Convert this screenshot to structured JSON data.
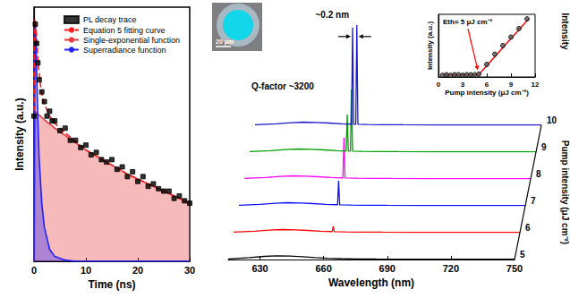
{
  "chart_data": [
    {
      "type": "line",
      "xlabel": "Time (ns)",
      "ylabel": "Intensity (a.u.)",
      "xlim": [
        0,
        30
      ],
      "xticks": [
        0,
        10,
        20,
        30
      ],
      "ylim": [
        0,
        1.05
      ],
      "tick_labels": "x",
      "grid": false,
      "legend": "upper right",
      "series": [
        {
          "name": "PL decay trace",
          "type": "scatter",
          "marker": "square",
          "color": "#000000",
          "x": [
            0,
            0.25,
            0.5,
            0.75,
            1,
            1.5,
            2,
            2.5,
            3,
            3.5,
            4,
            5,
            6,
            7,
            8,
            9,
            10,
            11,
            12,
            13,
            14,
            15,
            16,
            17,
            18,
            19,
            20,
            21,
            22,
            23,
            24,
            25,
            26,
            27,
            28,
            29,
            30
          ],
          "values": [
            0.6,
            0.98,
            0.9,
            0.82,
            0.75,
            0.7,
            0.66,
            0.6,
            0.62,
            0.58,
            0.58,
            0.54,
            0.55,
            0.5,
            0.5,
            0.47,
            0.48,
            0.44,
            0.45,
            0.42,
            0.41,
            0.42,
            0.38,
            0.39,
            0.35,
            0.37,
            0.33,
            0.35,
            0.31,
            0.32,
            0.3,
            0.29,
            0.29,
            0.26,
            0.27,
            0.25,
            0.24
          ]
        },
        {
          "name": "Equation 5 fitting curve",
          "type": "line",
          "line_style": "dashed",
          "color": "#ff1a1a",
          "x": [
            0,
            0.1,
            0.2,
            0.3,
            0.5,
            0.75,
            1,
            1.5,
            2,
            3,
            4,
            5,
            6,
            8,
            10,
            12,
            14,
            16,
            18,
            20,
            22,
            24,
            26,
            28,
            30
          ],
          "values": [
            0.62,
            0.88,
            1.0,
            0.99,
            0.93,
            0.84,
            0.77,
            0.69,
            0.65,
            0.6,
            0.57,
            0.55,
            0.53,
            0.495,
            0.46,
            0.435,
            0.41,
            0.385,
            0.36,
            0.34,
            0.32,
            0.3,
            0.28,
            0.26,
            0.24
          ]
        },
        {
          "name": "Single-exponential function",
          "type": "area",
          "line_style": "solid",
          "color": "#e8383d",
          "x": [
            0,
            0.15,
            2,
            4,
            6,
            8,
            10,
            12,
            14,
            16,
            18,
            20,
            22,
            24,
            26,
            28,
            30
          ],
          "values": [
            0,
            0.62,
            0.585,
            0.55,
            0.52,
            0.49,
            0.46,
            0.435,
            0.41,
            0.385,
            0.36,
            0.34,
            0.32,
            0.3,
            0.28,
            0.26,
            0.24
          ]
        },
        {
          "name": "Superradiance function",
          "type": "area",
          "line_style": "solid",
          "color": "#1f1fff",
          "x": [
            0,
            0.1,
            0.2,
            0.3,
            0.5,
            0.75,
            1,
            1.5,
            2,
            3,
            4,
            6,
            8,
            10,
            15,
            20,
            30
          ],
          "values": [
            0,
            0.6,
            0.95,
            0.97,
            0.8,
            0.58,
            0.42,
            0.24,
            0.14,
            0.05,
            0.02,
            0.005,
            0,
            0,
            0,
            0,
            0
          ]
        }
      ]
    },
    {
      "type": "waterfall",
      "xlabel": "Wavelength (nm)",
      "ylabel": "Intensity",
      "zlabel": "Pump intensity (μJ cm⁻²)",
      "xlim": [
        615,
        750
      ],
      "xticks": [
        630,
        660,
        690,
        720,
        750
      ],
      "ylim": [
        0,
        1
      ],
      "tick_labels": "x",
      "grid": false,
      "annotations": {
        "peak_spacing": "~0.2 nm",
        "q_factor": "Q-factor ~3200",
        "scale_bar": "20 μm"
      },
      "series": [
        {
          "pump": 5,
          "color": "#000000",
          "x": [
            615,
            625,
            632,
            638,
            644,
            650,
            656,
            662,
            668,
            675,
            685,
            700,
            720,
            750
          ],
          "values": [
            0.005,
            0.015,
            0.025,
            0.03,
            0.028,
            0.022,
            0.015,
            0.01,
            0.007,
            0.005,
            0.004,
            0.003,
            0.002,
            0.002
          ]
        },
        {
          "pump": 6,
          "color": "#ff0000",
          "x": [
            615,
            625,
            632,
            638,
            644,
            650,
            656,
            661,
            661.5,
            662,
            662.5,
            663,
            668,
            675,
            685,
            700,
            720,
            750
          ],
          "values": [
            0.005,
            0.012,
            0.02,
            0.025,
            0.022,
            0.018,
            0.012,
            0.009,
            0.009,
            0.05,
            0.009,
            0.008,
            0.006,
            0.005,
            0.004,
            0.003,
            0.002,
            0.002
          ]
        },
        {
          "pump": 7,
          "color": "#1010ff",
          "x": [
            615,
            625,
            632,
            638,
            644,
            650,
            656,
            661,
            661.5,
            662,
            662.5,
            663,
            668,
            675,
            685,
            700,
            720,
            750
          ],
          "values": [
            0.005,
            0.012,
            0.02,
            0.025,
            0.022,
            0.018,
            0.012,
            0.009,
            0.009,
            0.2,
            0.009,
            0.008,
            0.006,
            0.005,
            0.004,
            0.003,
            0.002,
            0.002
          ]
        },
        {
          "pump": 8,
          "color": "#ff00ff",
          "x": [
            615,
            625,
            632,
            638,
            644,
            650,
            656,
            661,
            661.5,
            662,
            662.5,
            663,
            668,
            675,
            685,
            700,
            720,
            750
          ],
          "values": [
            0.005,
            0.012,
            0.02,
            0.025,
            0.022,
            0.018,
            0.012,
            0.009,
            0.009,
            0.33,
            0.009,
            0.008,
            0.006,
            0.005,
            0.004,
            0.003,
            0.002,
            0.002
          ]
        },
        {
          "pump": 9,
          "color": "#00a000",
          "x": [
            615,
            625,
            632,
            638,
            644,
            650,
            656,
            660.5,
            661,
            661.5,
            662,
            662.5,
            663,
            663.5,
            668,
            675,
            685,
            700,
            720,
            750
          ],
          "values": [
            0.005,
            0.012,
            0.02,
            0.025,
            0.022,
            0.018,
            0.012,
            0.009,
            0.3,
            0.009,
            0.008,
            0.009,
            0.5,
            0.008,
            0.006,
            0.005,
            0.004,
            0.003,
            0.002,
            0.002
          ]
        },
        {
          "pump": 10,
          "color": "#1a1acc",
          "x": [
            615,
            625,
            632,
            638,
            644,
            650,
            656,
            660.5,
            661,
            661.5,
            662,
            662.5,
            663,
            663.5,
            668,
            675,
            685,
            700,
            720,
            750
          ],
          "values": [
            0.005,
            0.012,
            0.02,
            0.025,
            0.022,
            0.018,
            0.012,
            0.009,
            0.78,
            0.009,
            0.008,
            0.009,
            0.8,
            0.008,
            0.006,
            0.005,
            0.004,
            0.003,
            0.002,
            0.002
          ]
        }
      ]
    },
    {
      "type": "scatter",
      "xlabel": "Pump intensity (μJ cm⁻²)",
      "ylabel": "Intensity (a.u.)",
      "xlim": [
        0,
        12
      ],
      "xticks": [
        0,
        3,
        6,
        9,
        12
      ],
      "ylim": [
        0,
        1.1
      ],
      "tick_labels": "x",
      "grid": false,
      "annotation": "Eth= 5 μJ cm⁻²",
      "series": [
        {
          "type": "scatter",
          "marker": "circle",
          "color": "#000000",
          "x": [
            0.5,
            1,
            1.5,
            2,
            2.5,
            3,
            3.5,
            4,
            4.5,
            5,
            6,
            7,
            8,
            9,
            10,
            11
          ],
          "values": [
            0.03,
            0.04,
            0.03,
            0.04,
            0.04,
            0.03,
            0.04,
            0.04,
            0.04,
            0.05,
            0.22,
            0.4,
            0.55,
            0.7,
            0.85,
            1.02
          ]
        },
        {
          "type": "line",
          "line_style": "solid",
          "color": "#ff0000",
          "x": [
            0.5,
            5,
            11.2
          ],
          "values": [
            0.04,
            0.04,
            1.02
          ]
        }
      ]
    }
  ]
}
